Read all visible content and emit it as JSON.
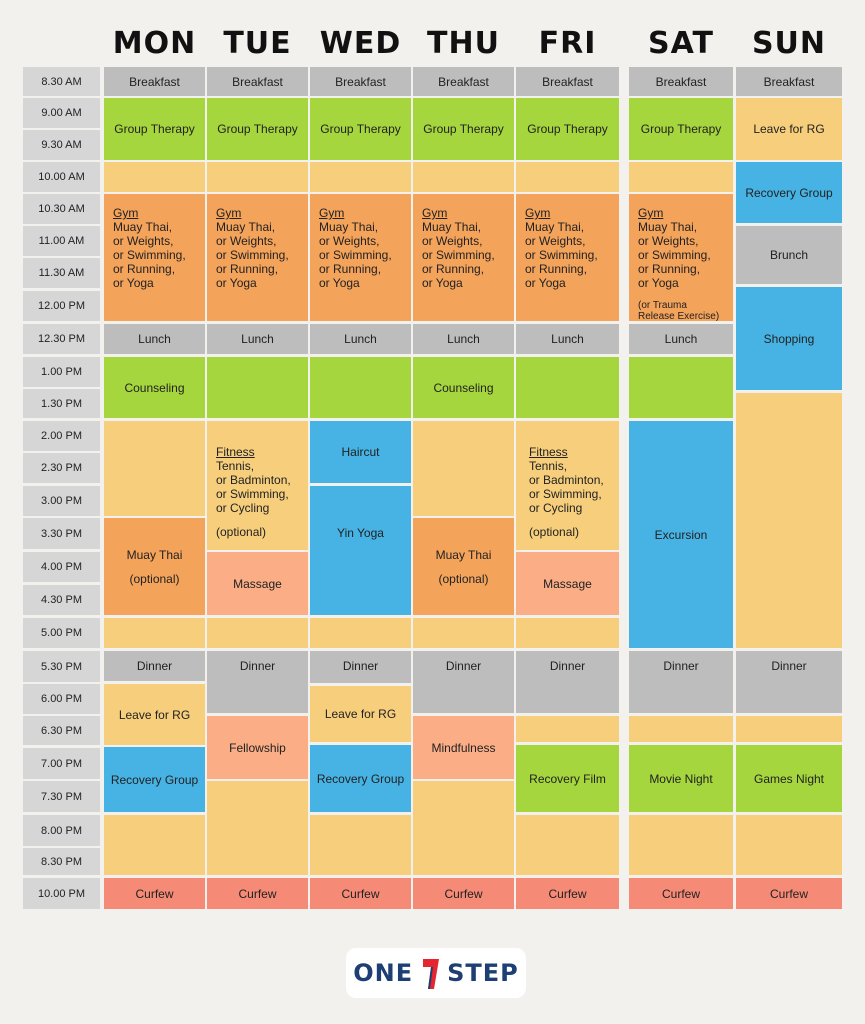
{
  "days": [
    "MON",
    "TUE",
    "WED",
    "THU",
    "FRI",
    "SAT",
    "SUN"
  ],
  "times": [
    "8.30 AM",
    "9.00 AM",
    "9.30 AM",
    "10.00 AM",
    "10.30 AM",
    "11.00 AM",
    "11.30 AM",
    "12.00 PM",
    "12.30 PM",
    "1.00 PM",
    "1.30 PM",
    "2.00 PM",
    "2.30 PM",
    "3.00 PM",
    "3.30 PM",
    "4.00 PM",
    "4.30 PM",
    "5.00 PM",
    "5.30 PM",
    "6.00 PM",
    "6.30 PM",
    "7.00 PM",
    "7.30 PM",
    "8.00 PM",
    "8.30 PM",
    "10.00 PM"
  ],
  "labels": {
    "breakfast": "Breakfast",
    "group_therapy": "Group Therapy",
    "leave_rg": "Leave for RG",
    "recovery_group": "Recovery Group",
    "brunch": "Brunch",
    "shopping": "Shopping",
    "lunch": "Lunch",
    "counseling": "Counseling",
    "haircut": "Haircut",
    "yin_yoga": "Yin Yoga",
    "muay_thai": "Muay Thai",
    "optional": "(optional)",
    "massage": "Massage",
    "excursion": "Excursion",
    "dinner": "Dinner",
    "fellowship": "Fellowship",
    "mindfulness": "Mindfulness",
    "recovery_film": "Recovery Film",
    "movie_night": "Movie Night",
    "games_night": "Games Night",
    "curfew": "Curfew",
    "gym_title": "Gym",
    "gym_lines": [
      "Muay Thai,",
      "or Weights,",
      "or Swimming,",
      "or Running,",
      "or Yoga"
    ],
    "trauma_note": "(or Trauma Release Exercise)",
    "fitness_title": "Fitness",
    "fitness_lines": [
      "Tennis,",
      "or Badminton,",
      "or Swimming,",
      "or Cycling"
    ]
  },
  "logo": {
    "left": "ONE",
    "right": "STEP"
  },
  "colors": {
    "gray": "#bdbdbd",
    "green": "#a6d63d",
    "yellow": "#f7cf7c",
    "orange": "#f4a35b",
    "peach": "#fbad86",
    "blue": "#47b3e4",
    "red": "#f58a76"
  }
}
